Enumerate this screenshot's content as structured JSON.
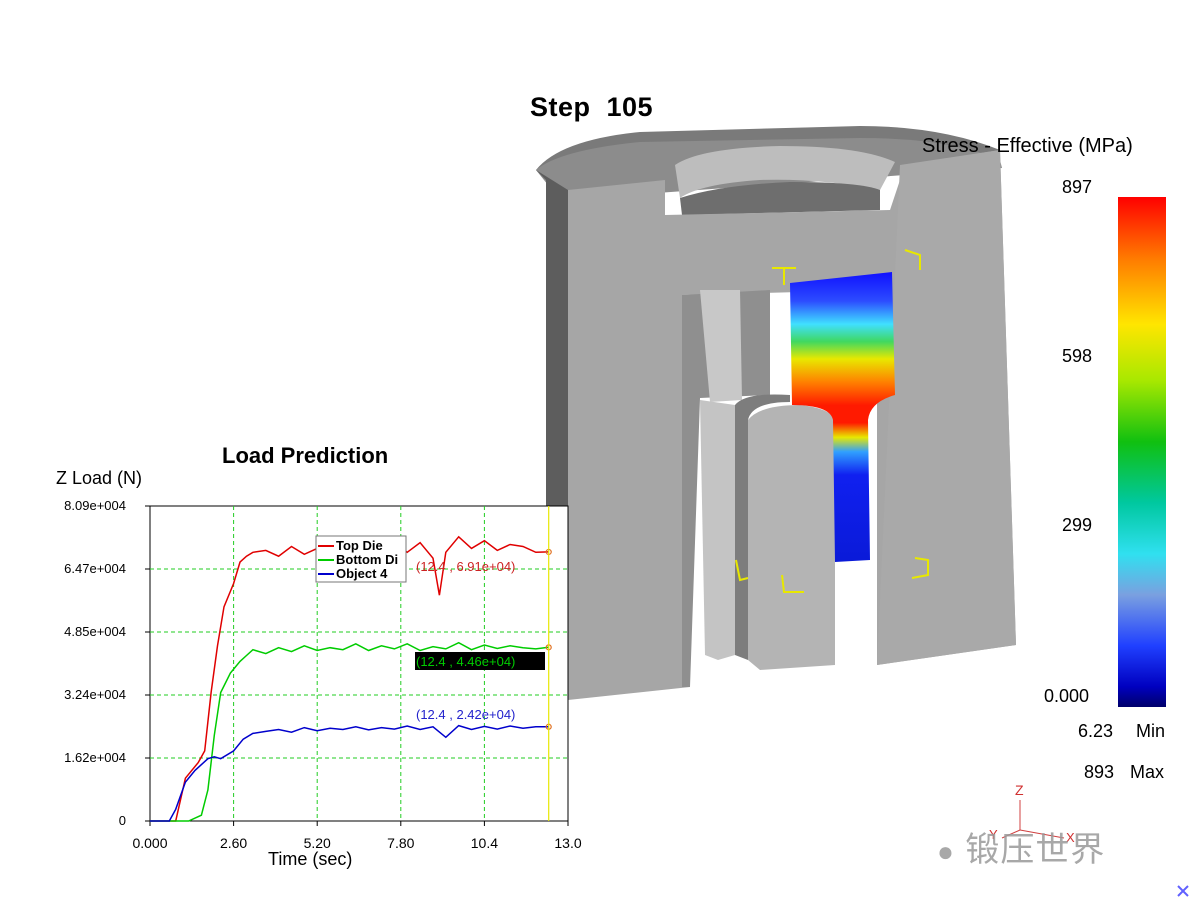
{
  "step_title": "Step  105",
  "legend": {
    "title": "Stress - Effective (MPa)",
    "ticks": [
      "897",
      "598",
      "299",
      "0.000"
    ],
    "min_value": "6.23",
    "min_label": "Min",
    "max_value": "893",
    "max_label": "Max",
    "gradient_colors": [
      "#ff0000",
      "#ff7a00",
      "#ffe600",
      "#10c010",
      "#30e0f0",
      "#2040ff",
      "#00006a"
    ]
  },
  "triad": {
    "z": "Z",
    "y": "Y",
    "x": "X"
  },
  "watermark": "锻压世界",
  "colors": {
    "grid": "#22cc22",
    "top_die": "#e00000",
    "bottom_die": "#00cc00",
    "object4": "#0000cc",
    "cursor": "#e8e800"
  },
  "chart_data": {
    "type": "line",
    "title": "Load Prediction",
    "ylabel": "Z Load (N)",
    "xlabel": "Time (sec)",
    "xlim": [
      0,
      13.0
    ],
    "ylim": [
      0,
      80900
    ],
    "xticks": [
      "0.000",
      "2.60",
      "5.20",
      "7.80",
      "10.4",
      "13.0"
    ],
    "yticks": [
      "0",
      "1.62e+004",
      "3.24e+004",
      "4.85e+004",
      "6.47e+004",
      "8.09e+004"
    ],
    "grid": true,
    "legend_position": "top-center",
    "cursor_x": 12.4,
    "annotations": [
      "(12.4 , 6.91e+04)",
      "(12.4 , 4.46e+04)",
      "(12.4 , 2.42e+04)"
    ],
    "series": [
      {
        "name": "Top Die",
        "color": "#e00000",
        "x": [
          0,
          0.8,
          1.1,
          1.5,
          1.7,
          1.9,
          2.1,
          2.3,
          2.6,
          2.8,
          3.0,
          3.2,
          3.6,
          4.0,
          4.4,
          4.8,
          5.2,
          5.6,
          6.0,
          6.4,
          6.8,
          7.2,
          7.6,
          8.0,
          8.4,
          8.8,
          9.0,
          9.2,
          9.6,
          10.0,
          10.4,
          10.8,
          11.2,
          11.6,
          12.0,
          12.4
        ],
        "values": [
          0,
          0,
          11000,
          15000,
          18000,
          33000,
          45000,
          55000,
          61000,
          66500,
          68000,
          69000,
          69500,
          68000,
          70500,
          68500,
          70000,
          69500,
          72000,
          68500,
          71500,
          69000,
          72000,
          69000,
          71500,
          67500,
          58000,
          69000,
          73000,
          70000,
          72000,
          69500,
          71000,
          70500,
          69000,
          69100
        ]
      },
      {
        "name": "Bottom Di",
        "color": "#00cc00",
        "x": [
          0,
          0.8,
          1.2,
          1.6,
          1.8,
          2.0,
          2.2,
          2.5,
          2.8,
          3.0,
          3.2,
          3.6,
          4.0,
          4.4,
          4.8,
          5.2,
          5.6,
          6.0,
          6.4,
          6.8,
          7.2,
          7.6,
          8.0,
          8.4,
          8.8,
          9.2,
          9.6,
          10.0,
          10.4,
          10.8,
          11.2,
          11.6,
          12.0,
          12.4
        ],
        "values": [
          0,
          0,
          0,
          1500,
          8000,
          22000,
          33000,
          38000,
          41000,
          42500,
          44000,
          43000,
          44500,
          43500,
          45000,
          43800,
          44500,
          44000,
          45500,
          43800,
          45000,
          44200,
          45500,
          43800,
          44800,
          44200,
          45800,
          44000,
          45200,
          44300,
          45000,
          44500,
          44200,
          44600
        ]
      },
      {
        "name": "Object 4",
        "color": "#0000cc",
        "x": [
          0,
          0.6,
          0.8,
          1.1,
          1.4,
          1.8,
          2.0,
          2.2,
          2.6,
          2.9,
          3.2,
          3.6,
          4.0,
          4.4,
          4.8,
          5.2,
          5.6,
          6.0,
          6.4,
          6.8,
          7.2,
          7.6,
          8.0,
          8.4,
          8.8,
          9.2,
          9.6,
          10.0,
          10.4,
          10.8,
          11.2,
          11.6,
          12.0,
          12.4
        ],
        "values": [
          0,
          0,
          3000,
          10000,
          13000,
          16000,
          16500,
          16000,
          18000,
          21000,
          22500,
          23000,
          23500,
          22800,
          24000,
          23200,
          23800,
          23500,
          24200,
          23400,
          24000,
          23600,
          24400,
          23500,
          24200,
          21500,
          24500,
          23500,
          24300,
          23600,
          24400,
          23800,
          24200,
          24200
        ]
      }
    ]
  }
}
